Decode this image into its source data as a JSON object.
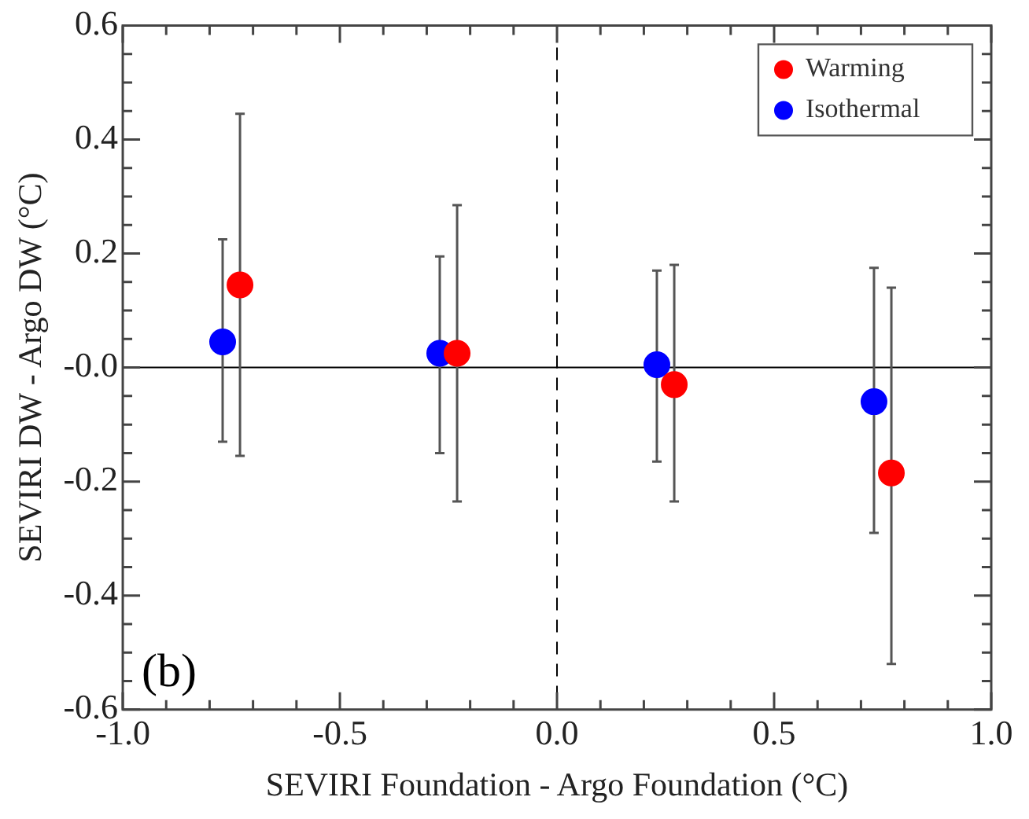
{
  "chart_data": {
    "type": "scatter",
    "xlabel": "SEVIRI Foundation - Argo Foundation (°C)",
    "ylabel": "SEVIRI DW - Argo DW (°C)",
    "series": [
      {
        "name": "Warming",
        "color": "#ff0000",
        "x": [
          -0.73,
          -0.23,
          0.27,
          0.77
        ],
        "values": [
          0.145,
          0.025,
          -0.03,
          -0.185
        ],
        "errors": [
          [
            -0.155,
            0.445
          ],
          [
            -0.235,
            0.285
          ],
          [
            -0.235,
            0.18
          ],
          [
            -0.52,
            0.14
          ]
        ]
      },
      {
        "name": "Isothermal",
        "color": "#0000ff",
        "x": [
          -0.77,
          -0.27,
          0.23,
          0.73
        ],
        "values": [
          0.045,
          0.025,
          0.005,
          -0.06
        ],
        "errors": [
          [
            -0.13,
            0.225
          ],
          [
            -0.15,
            0.195
          ],
          [
            -0.165,
            0.17
          ],
          [
            -0.29,
            0.175
          ]
        ]
      }
    ],
    "xlim": [
      -1,
      1
    ],
    "xticks": [
      {
        "value": -1,
        "label": "-1.0"
      },
      {
        "value": -0.9,
        "label": null
      },
      {
        "value": -0.8,
        "label": null
      },
      {
        "value": -0.7,
        "label": null
      },
      {
        "value": -0.6,
        "label": null
      },
      {
        "value": -0.5,
        "label": "-0.5"
      },
      {
        "value": -0.4,
        "label": null
      },
      {
        "value": -0.3,
        "label": null
      },
      {
        "value": -0.2,
        "label": null
      },
      {
        "value": -0.1,
        "label": null
      },
      {
        "value": 0,
        "label": "0.0"
      },
      {
        "value": 0.1,
        "label": null
      },
      {
        "value": 0.2,
        "label": null
      },
      {
        "value": 0.3,
        "label": null
      },
      {
        "value": 0.4,
        "label": null
      },
      {
        "value": 0.5,
        "label": "0.5"
      },
      {
        "value": 0.6,
        "label": null
      },
      {
        "value": 0.7,
        "label": null
      },
      {
        "value": 0.8,
        "label": null
      },
      {
        "value": 0.9,
        "label": null
      },
      {
        "value": 1,
        "label": "1.0"
      }
    ],
    "ylim": [
      -0.6,
      0.6
    ],
    "yticks": [
      -0.6,
      {
        "value": -0.55,
        "label": null
      },
      {
        "value": -0.5,
        "label": null
      },
      {
        "value": -0.45,
        "label": null
      },
      -0.4,
      {
        "value": -0.35,
        "label": null
      },
      {
        "value": -0.3,
        "label": null
      },
      {
        "value": -0.25,
        "label": null
      },
      -0.2,
      {
        "value": -0.15,
        "label": null
      },
      {
        "value": -0.1,
        "label": null
      },
      {
        "value": -0.05,
        "label": null
      },
      {
        "value": 0,
        "label": "-0.0"
      },
      {
        "value": 0.05,
        "label": null
      },
      {
        "value": 0.1,
        "label": null
      },
      {
        "value": 0.15,
        "label": null
      },
      0.2,
      {
        "value": 0.25,
        "label": null
      },
      {
        "value": 0.3,
        "label": null
      },
      {
        "value": 0.35,
        "label": null
      },
      0.4,
      {
        "value": 0.45,
        "label": null
      },
      {
        "value": 0.5,
        "label": null
      },
      {
        "value": 0.55,
        "label": null
      },
      0.6
    ],
    "ref_lines": [
      {
        "axis": "y",
        "value": 0,
        "line_style": "solid"
      },
      {
        "axis": "x",
        "value": 0,
        "line_style": "dashed"
      }
    ],
    "annotations": [
      "(b)"
    ],
    "legend": "top right",
    "marker": "circle",
    "grid": false
  }
}
